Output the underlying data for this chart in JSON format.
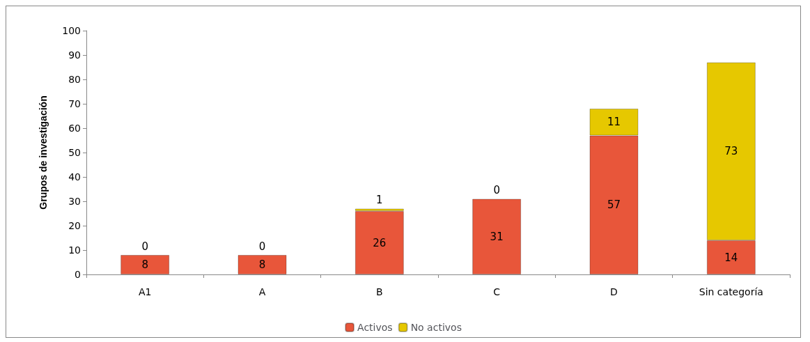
{
  "chart_data": {
    "type": "bar",
    "stacked": true,
    "ylabel": "Grupos de investigación",
    "categories": [
      "A1",
      "A",
      "B",
      "C",
      "D",
      "Sin categoría"
    ],
    "series": [
      {
        "name": "Activos",
        "color": "#e8563a",
        "values": [
          8,
          8,
          26,
          31,
          57,
          14
        ]
      },
      {
        "name": "No activos",
        "color": "#e6c800",
        "values": [
          0,
          0,
          1,
          0,
          11,
          73
        ]
      }
    ],
    "ylim": [
      0,
      100
    ],
    "yticks": [
      0,
      10,
      20,
      30,
      40,
      50,
      60,
      70,
      80,
      90,
      100
    ],
    "grid": false,
    "legend": "bottom",
    "data_labels": true
  }
}
